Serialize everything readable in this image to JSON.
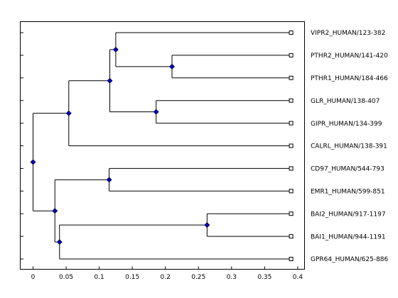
{
  "chart_data": {
    "type": "dendrogram",
    "title": "",
    "xlabel": "",
    "ylabel": "",
    "xlim": [
      -0.01,
      0.4
    ],
    "x_ticks": [
      0,
      0.05,
      0.1,
      0.15,
      0.2,
      0.25,
      0.3,
      0.35,
      0.4
    ],
    "x_tick_labels": [
      "0",
      "0.05",
      "0.1",
      "0.15",
      "0.2",
      "0.25",
      "0.3",
      "0.35",
      "0.4"
    ],
    "leaf_distance": 0.39,
    "leaves": [
      "VIPR2_HUMAN/123-382",
      "PTHR2_HUMAN/141-420",
      "PTHR1_HUMAN/184-466",
      "GLR_HUMAN/138-407",
      "GIPR_HUMAN/134-399",
      "CALRL_HUMAN/138-391",
      "CD97_HUMAN/544-793",
      "EMR1_HUMAN/599-851",
      "BAI2_HUMAN/917-1197",
      "BAI1_HUMAN/944-1191",
      "GPR64_HUMAN/625-886"
    ],
    "nodes": [
      {
        "id": "n_pth",
        "x": 0.21,
        "children": [
          "L1",
          "L2"
        ]
      },
      {
        "id": "n_vip",
        "x": 0.125,
        "children": [
          "L0",
          "n_pth"
        ]
      },
      {
        "id": "n_gl",
        "x": 0.186,
        "children": [
          "L3",
          "L4"
        ]
      },
      {
        "id": "n_a",
        "x": 0.116,
        "children": [
          "n_vip",
          "n_gl"
        ]
      },
      {
        "id": "n_b",
        "x": 0.054,
        "children": [
          "n_a",
          "L5"
        ]
      },
      {
        "id": "n_cd",
        "x": 0.115,
        "children": [
          "L6",
          "L7"
        ]
      },
      {
        "id": "n_bai",
        "x": 0.263,
        "children": [
          "L8",
          "L9"
        ]
      },
      {
        "id": "n_c",
        "x": 0.04,
        "children": [
          "n_bai",
          "L10"
        ]
      },
      {
        "id": "n_d",
        "x": 0.033,
        "children": [
          "n_cd",
          "n_c"
        ]
      },
      {
        "id": "root",
        "x": 0.0,
        "children": [
          "n_b",
          "n_d"
        ]
      }
    ],
    "grid": false,
    "colors": {
      "node": "#0000cc",
      "leaf": "#ffffff",
      "line": "#000000"
    }
  }
}
